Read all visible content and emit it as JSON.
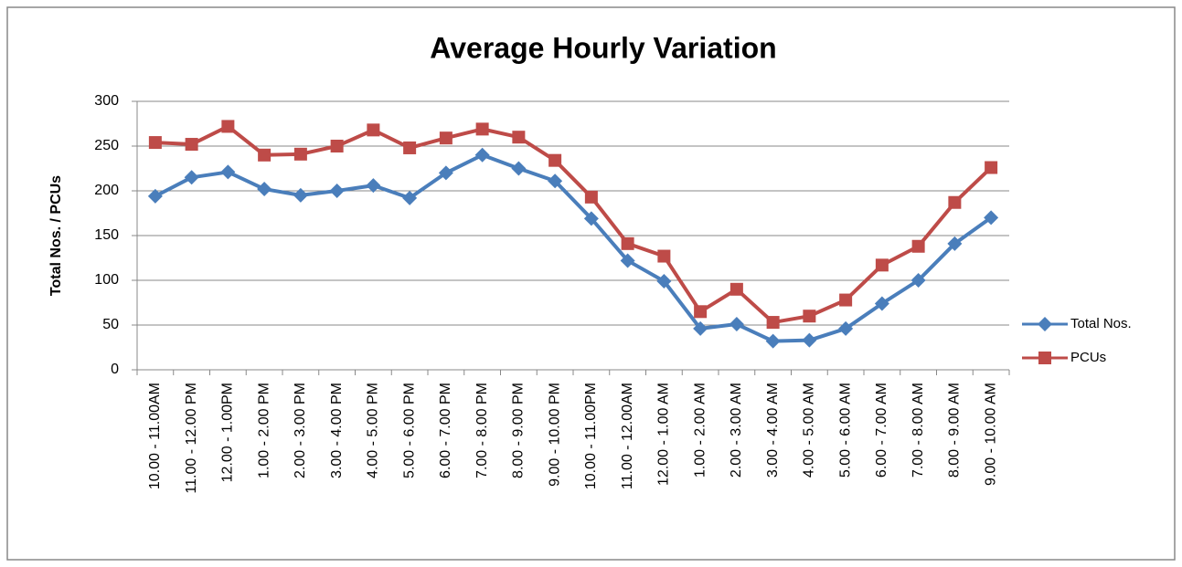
{
  "chart_data": {
    "type": "line",
    "title": "Average Hourly Variation",
    "y_label": "Total Nos. / PCUs",
    "categories": [
      "10.00 - 11.00AM",
      "11.00 - 12.00 PM",
      "12.00 - 1.00PM",
      "1.00 - 2.00 PM",
      "2.00 - 3.00 PM",
      "3.00 - 4.00 PM",
      "4.00 - 5.00 PM",
      "5.00 - 6.00 PM",
      "6.00 - 7.00 PM",
      "7.00 - 8.00 PM",
      "8.00 - 9.00 PM",
      "9.00 - 10.00 PM",
      "10.00 - 11.00PM",
      "11.00 - 12.00AM",
      "12.00 - 1.00 AM",
      "1.00 - 2.00 AM",
      "2.00 - 3.00 AM",
      "3.00 - 4.00 AM",
      "4.00 - 5.00 AM",
      "5.00 - 6.00 AM",
      "6.00 - 7.00 AM",
      "7.00 - 8.00 AM",
      "8.00 - 9.00 AM",
      "9.00 - 10.00 AM"
    ],
    "series": [
      {
        "name": "Total Nos.",
        "color": "#4a7ebb",
        "marker": "diamond",
        "values": [
          194,
          215,
          221,
          202,
          195,
          200,
          206,
          192,
          220,
          240,
          225,
          211,
          169,
          122,
          99,
          46,
          51,
          32,
          33,
          46,
          74,
          100,
          141,
          170
        ]
      },
      {
        "name": "PCUs",
        "color": "#be4b48",
        "marker": "square",
        "values": [
          254,
          252,
          272,
          240,
          241,
          250,
          268,
          248,
          259,
          269,
          260,
          234,
          193,
          141,
          127,
          65,
          90,
          53,
          60,
          78,
          117,
          138,
          187,
          226
        ]
      }
    ],
    "ylim": [
      0,
      300
    ],
    "yticks": [
      0,
      50,
      100,
      150,
      200,
      250,
      300
    ],
    "grid": true,
    "legend": "right"
  }
}
